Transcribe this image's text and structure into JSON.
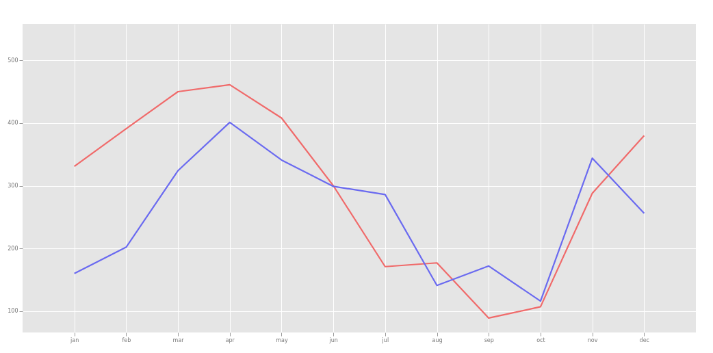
{
  "chart_data": {
    "type": "line",
    "categories": [
      "jan",
      "feb",
      "mar",
      "apr",
      "may",
      "jun",
      "jul",
      "aug",
      "sep",
      "oct",
      "nov",
      "dec"
    ],
    "series": [
      {
        "color": "#f06a6a",
        "values": [
          331,
          391,
          450,
          461,
          408,
          300,
          171,
          177,
          89,
          107,
          288,
          380
        ]
      },
      {
        "color": "#6a6af0",
        "values": [
          160,
          202,
          324,
          401,
          341,
          299,
          286,
          141,
          172,
          116,
          344,
          256
        ]
      }
    ],
    "ylim": [
      66,
      558
    ],
    "yticks": [
      100,
      200,
      300,
      400,
      500
    ],
    "grid": true,
    "marker": "none",
    "line_style": "solid"
  }
}
